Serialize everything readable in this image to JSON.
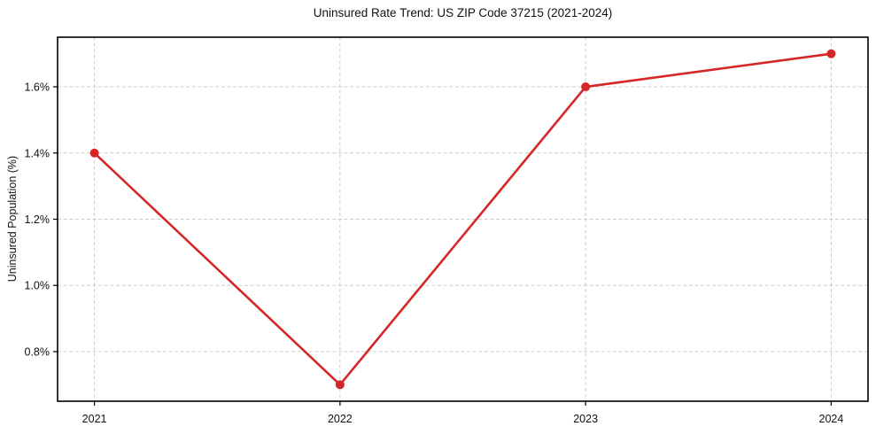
{
  "chart_data": {
    "type": "line",
    "title": "Uninsured Rate Trend: US ZIP Code 37215 (2021-2024)",
    "xlabel": "",
    "ylabel": "Uninsured Population (%)",
    "x": [
      2021,
      2022,
      2023,
      2024
    ],
    "values": [
      1.4,
      0.7,
      1.6,
      1.7
    ],
    "xticks": [
      2021,
      2022,
      2023,
      2024
    ],
    "xtick_labels": [
      "2021",
      "2022",
      "2023",
      "2024"
    ],
    "yticks": [
      0.8,
      1.0,
      1.2,
      1.4,
      1.6
    ],
    "ytick_labels": [
      "0.8%",
      "1.0%",
      "1.2%",
      "1.4%",
      "1.6%"
    ],
    "xlim": [
      2020.85,
      2024.15
    ],
    "ylim": [
      0.65,
      1.75
    ],
    "grid": true,
    "grid_style": "dashed",
    "legend": "none",
    "marker": "circle",
    "line_color": "#d62728",
    "grid_color": "#cccccc",
    "axis_color": "#000000",
    "text_color": "#111111",
    "background": "#ffffff"
  }
}
